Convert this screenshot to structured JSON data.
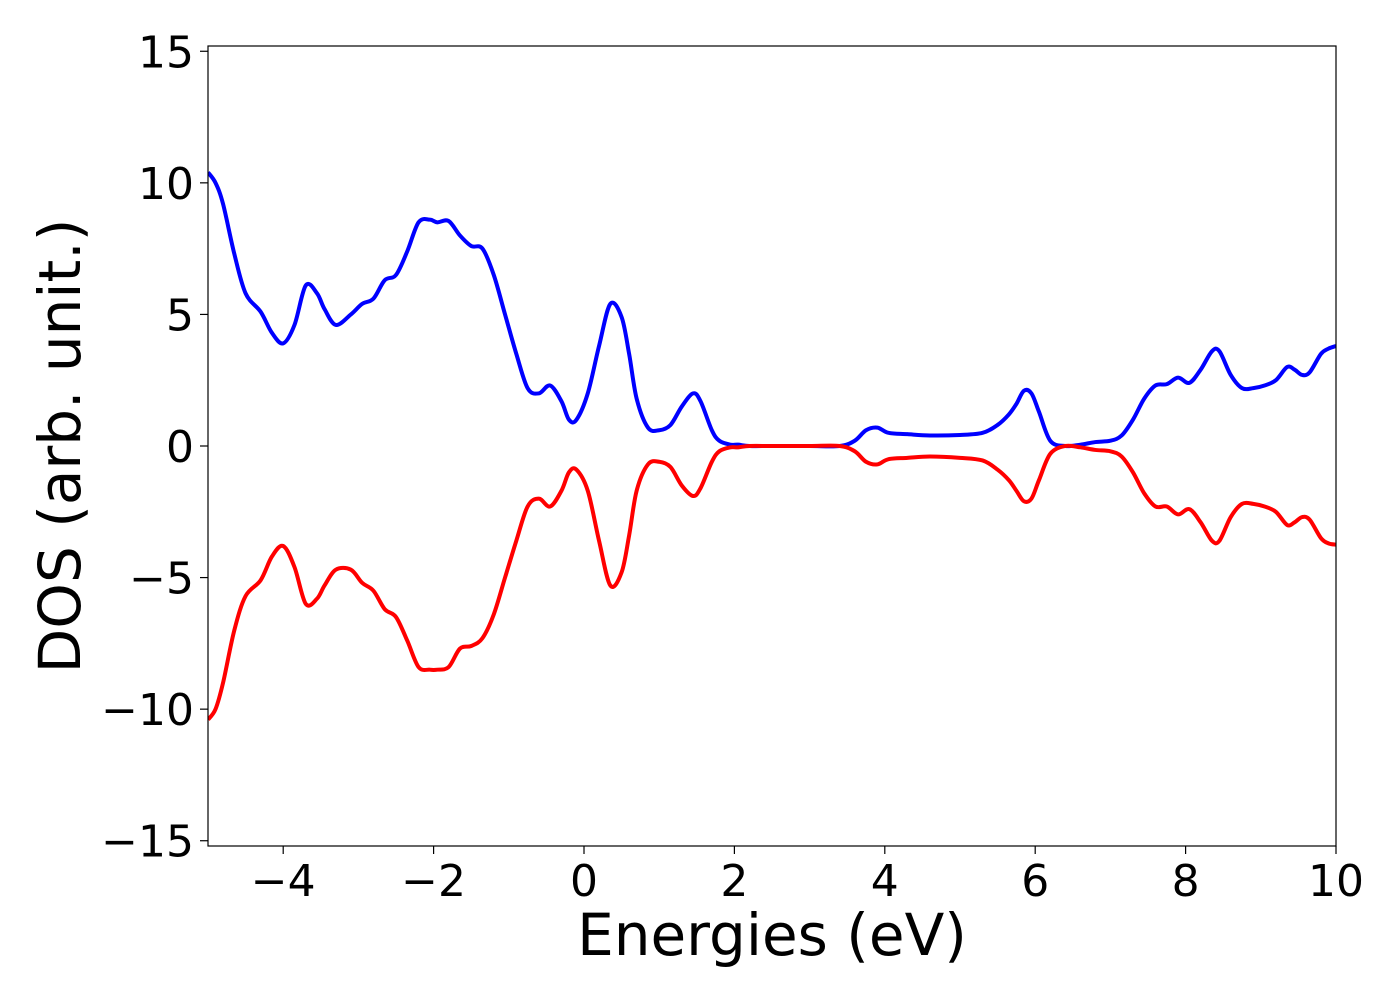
{
  "chart_data": {
    "type": "line",
    "title": "",
    "xlabel": "Energies (eV)",
    "ylabel": "DOS (arb. unit.)",
    "xlim": [
      -5,
      10
    ],
    "ylim": [
      -15.2,
      15.2
    ],
    "xticks": [
      -4,
      -2,
      0,
      2,
      4,
      6,
      8,
      10
    ],
    "xtick_labels": [
      "−4",
      "−2",
      "0",
      "2",
      "4",
      "6",
      "8",
      "10"
    ],
    "yticks": [
      -15,
      -10,
      -5,
      0,
      5,
      10,
      15
    ],
    "ytick_labels": [
      "−15",
      "−10",
      "−5",
      "0",
      "5",
      "10",
      "15"
    ],
    "grid": false,
    "legend": "none",
    "series": [
      {
        "color": "#0000ff",
        "x": [
          -5.0,
          -4.9,
          -4.8,
          -4.65,
          -4.5,
          -4.3,
          -4.15,
          -4.0,
          -3.85,
          -3.7,
          -3.55,
          -3.45,
          -3.3,
          -3.1,
          -2.95,
          -2.8,
          -2.65,
          -2.5,
          -2.35,
          -2.2,
          -2.05,
          -1.95,
          -1.8,
          -1.65,
          -1.5,
          -1.35,
          -1.2,
          -1.05,
          -0.9,
          -0.75,
          -0.6,
          -0.45,
          -0.3,
          -0.2,
          -0.1,
          0.05,
          0.2,
          0.35,
          0.5,
          0.6,
          0.7,
          0.85,
          1.0,
          1.15,
          1.3,
          1.45,
          1.55,
          1.7,
          1.8,
          1.95,
          2.05,
          2.2,
          2.5,
          3.0,
          3.4,
          3.6,
          3.75,
          3.9,
          4.05,
          4.3,
          4.6,
          5.0,
          5.3,
          5.5,
          5.65,
          5.75,
          5.85,
          5.95,
          6.05,
          6.2,
          6.4,
          6.6,
          6.8,
          7.0,
          7.15,
          7.3,
          7.45,
          7.6,
          7.75,
          7.9,
          8.05,
          8.2,
          8.35,
          8.45,
          8.6,
          8.75,
          8.9,
          9.05,
          9.2,
          9.35,
          9.45,
          9.55,
          9.65,
          9.8,
          9.9,
          10.0
        ],
        "y": [
          10.4,
          10.0,
          9.2,
          7.3,
          5.8,
          5.1,
          4.3,
          3.9,
          4.6,
          6.1,
          5.8,
          5.2,
          4.6,
          5.0,
          5.4,
          5.6,
          6.3,
          6.5,
          7.4,
          8.5,
          8.6,
          8.5,
          8.55,
          8.0,
          7.6,
          7.5,
          6.5,
          5.0,
          3.5,
          2.2,
          2.0,
          2.3,
          1.7,
          1.0,
          1.0,
          2.0,
          3.8,
          5.4,
          4.9,
          3.5,
          1.8,
          0.7,
          0.6,
          0.8,
          1.5,
          2.0,
          1.7,
          0.6,
          0.2,
          0.05,
          0.05,
          0.0,
          0.0,
          0.0,
          0.0,
          0.2,
          0.6,
          0.7,
          0.5,
          0.45,
          0.4,
          0.42,
          0.5,
          0.8,
          1.2,
          1.6,
          2.1,
          2.0,
          1.3,
          0.2,
          0.0,
          0.05,
          0.15,
          0.2,
          0.4,
          1.0,
          1.8,
          2.3,
          2.35,
          2.6,
          2.4,
          2.9,
          3.6,
          3.6,
          2.7,
          2.2,
          2.2,
          2.3,
          2.5,
          3.0,
          2.9,
          2.7,
          2.8,
          3.5,
          3.7,
          3.8
        ]
      },
      {
        "color": "#ff0000",
        "x": [
          -5.0,
          -4.9,
          -4.8,
          -4.65,
          -4.5,
          -4.3,
          -4.15,
          -4.0,
          -3.85,
          -3.7,
          -3.55,
          -3.45,
          -3.3,
          -3.1,
          -2.95,
          -2.8,
          -2.65,
          -2.5,
          -2.35,
          -2.2,
          -2.05,
          -1.95,
          -1.8,
          -1.65,
          -1.5,
          -1.35,
          -1.2,
          -1.05,
          -0.9,
          -0.75,
          -0.6,
          -0.45,
          -0.3,
          -0.2,
          -0.1,
          0.05,
          0.2,
          0.35,
          0.5,
          0.6,
          0.7,
          0.85,
          1.0,
          1.15,
          1.3,
          1.45,
          1.55,
          1.7,
          1.8,
          1.95,
          2.05,
          2.2,
          2.5,
          3.0,
          3.4,
          3.6,
          3.75,
          3.9,
          4.05,
          4.3,
          4.6,
          5.0,
          5.3,
          5.5,
          5.65,
          5.75,
          5.85,
          5.95,
          6.05,
          6.2,
          6.4,
          6.6,
          6.8,
          7.0,
          7.15,
          7.3,
          7.45,
          7.6,
          7.75,
          7.9,
          8.05,
          8.2,
          8.35,
          8.45,
          8.6,
          8.75,
          8.9,
          9.05,
          9.2,
          9.35,
          9.45,
          9.55,
          9.65,
          9.8,
          9.9,
          10.0
        ],
        "y": [
          -10.4,
          -10.0,
          -9.0,
          -7.0,
          -5.7,
          -5.1,
          -4.2,
          -3.8,
          -4.6,
          -6.0,
          -5.8,
          -5.3,
          -4.7,
          -4.7,
          -5.2,
          -5.5,
          -6.2,
          -6.5,
          -7.4,
          -8.4,
          -8.5,
          -8.5,
          -8.4,
          -7.7,
          -7.6,
          -7.3,
          -6.4,
          -5.0,
          -3.6,
          -2.3,
          -2.0,
          -2.3,
          -1.7,
          -1.0,
          -0.9,
          -1.7,
          -3.6,
          -5.3,
          -4.8,
          -3.4,
          -1.7,
          -0.7,
          -0.6,
          -0.8,
          -1.5,
          -1.9,
          -1.6,
          -0.6,
          -0.2,
          -0.05,
          -0.05,
          0.0,
          0.0,
          0.0,
          0.0,
          -0.2,
          -0.6,
          -0.7,
          -0.5,
          -0.45,
          -0.4,
          -0.45,
          -0.55,
          -0.9,
          -1.3,
          -1.7,
          -2.1,
          -2.0,
          -1.3,
          -0.3,
          0.0,
          -0.05,
          -0.15,
          -0.2,
          -0.4,
          -1.0,
          -1.8,
          -2.3,
          -2.3,
          -2.6,
          -2.4,
          -2.9,
          -3.6,
          -3.6,
          -2.7,
          -2.2,
          -2.2,
          -2.3,
          -2.5,
          -3.0,
          -2.9,
          -2.7,
          -2.8,
          -3.5,
          -3.7,
          -3.75
        ]
      }
    ]
  }
}
